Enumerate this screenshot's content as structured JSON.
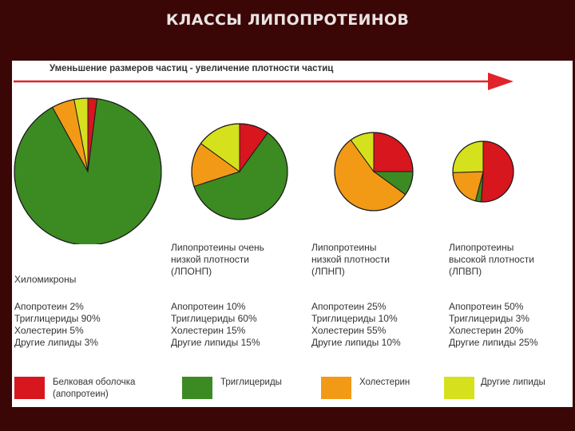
{
  "title": "КЛАССЫ ЛИПОПРОТЕИНОВ",
  "arrow_caption": "Уменьшение размеров частиц - увеличение плотности частиц",
  "colors": {
    "apoprotein": "#d7161e",
    "triglycerides": "#3c8a22",
    "cholesterol": "#f29a16",
    "other_lipids": "#d6e11d",
    "arrow": "#e0242a",
    "background": "#3b0606"
  },
  "chart_data": {
    "type": "pie",
    "components": [
      "Белковая оболочка (апопротеин)",
      "Триглицериды",
      "Холестерин",
      "Другие липиды"
    ],
    "pies": [
      {
        "name_lines": [
          "Хиломикроны"
        ],
        "stats": [
          "Апопротеин 2%",
          "Триглицериды 90%",
          "Холестерин 5%",
          "Другие липиды 3%"
        ],
        "values": [
          2,
          90,
          5,
          3
        ]
      },
      {
        "name_lines": [
          "Липопротеины очень",
          "низкой плотности",
          "(ЛПОНП)"
        ],
        "stats": [
          "Апопротеин 10%",
          "Триглицериды 60%",
          "Холестерин 15%",
          "Другие липиды 15%"
        ],
        "values": [
          10,
          60,
          15,
          15
        ]
      },
      {
        "name_lines": [
          "Липопротеины",
          "низкой плотности",
          "(ЛПНП)"
        ],
        "stats": [
          "Апопротеин 25%",
          "Триглицериды 10%",
          "Холестерин 55%",
          "Другие липиды 10%"
        ],
        "values": [
          25,
          10,
          55,
          10
        ]
      },
      {
        "name_lines": [
          "Липопротеины",
          "высокой плотности",
          "(ЛПВП)"
        ],
        "stats": [
          "Апопротеин 50%",
          "Триглицериды 3%",
          "Холестерин 20%",
          "Другие липиды 25%"
        ],
        "values": [
          50,
          3,
          20,
          25
        ]
      }
    ]
  },
  "legend": [
    {
      "label_lines": [
        "Белковая оболочка",
        "(апопротеин)"
      ]
    },
    {
      "label_lines": [
        "Триглицериды"
      ]
    },
    {
      "label_lines": [
        "Холестерин"
      ]
    },
    {
      "label_lines": [
        "Другие липиды"
      ]
    }
  ]
}
